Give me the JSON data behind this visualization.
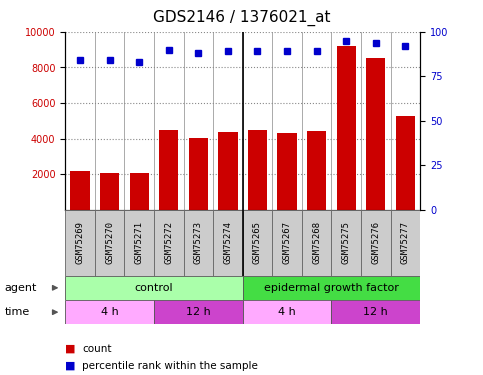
{
  "title": "GDS2146 / 1376021_at",
  "samples": [
    "GSM75269",
    "GSM75270",
    "GSM75271",
    "GSM75272",
    "GSM75273",
    "GSM75274",
    "GSM75265",
    "GSM75267",
    "GSM75268",
    "GSM75275",
    "GSM75276",
    "GSM75277"
  ],
  "counts": [
    2200,
    2100,
    2050,
    4500,
    4050,
    4400,
    4500,
    4350,
    4450,
    9200,
    8550,
    5300
  ],
  "percentile_ranks": [
    84,
    84,
    83,
    90,
    88,
    89,
    89,
    89,
    89,
    95,
    94,
    92
  ],
  "ylim_left": [
    0,
    10000
  ],
  "ylim_right": [
    0,
    100
  ],
  "yticks_left": [
    2000,
    4000,
    6000,
    8000,
    10000
  ],
  "yticks_right": [
    0,
    25,
    50,
    75,
    100
  ],
  "bar_color": "#cc0000",
  "dot_color": "#0000cc",
  "grid_color": "#888888",
  "plot_bg": "#ffffff",
  "sample_box_color": "#cccccc",
  "agent_control_color": "#aaffaa",
  "agent_egf_color": "#44dd44",
  "time_4h_color": "#ffaaff",
  "time_12h_color": "#cc44cc",
  "agent_groups": [
    {
      "label": "control",
      "start": 0,
      "end": 6
    },
    {
      "label": "epidermal growth factor",
      "start": 6,
      "end": 12
    }
  ],
  "time_groups": [
    {
      "label": "4 h",
      "start": 0,
      "end": 3,
      "color": "#ffaaff"
    },
    {
      "label": "12 h",
      "start": 3,
      "end": 6,
      "color": "#cc44cc"
    },
    {
      "label": "4 h",
      "start": 6,
      "end": 9,
      "color": "#ffaaff"
    },
    {
      "label": "12 h",
      "start": 9,
      "end": 12,
      "color": "#cc44cc"
    }
  ],
  "legend_count_color": "#cc0000",
  "legend_pct_color": "#0000cc",
  "xlabel_agent": "agent",
  "xlabel_time": "time",
  "tick_fontsize": 7,
  "title_fontsize": 11,
  "label_fontsize": 8
}
